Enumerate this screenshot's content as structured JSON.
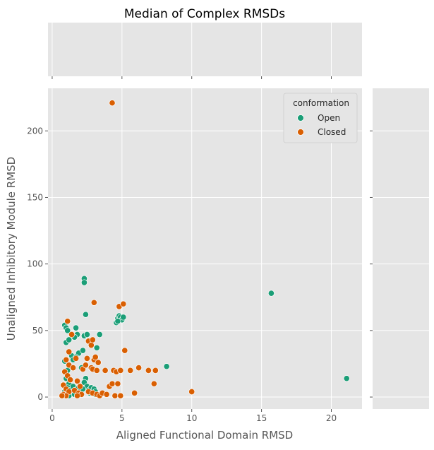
{
  "chart_data": {
    "type": "scatter",
    "title": "Median of Complex RMSDs",
    "xlabel": "Aligned Functional Domain RMSD",
    "ylabel": "Unaligned Inhibitory Module RMSD",
    "xlim": [
      -0.3,
      22.2
    ],
    "ylim": [
      -9,
      232
    ],
    "xticks": [
      0,
      5,
      10,
      15,
      20
    ],
    "yticks": [
      0,
      50,
      100,
      150,
      200
    ],
    "grid": true,
    "legend": {
      "title": "conformation",
      "position": "top-right"
    },
    "series": [
      {
        "name": "Open",
        "color": "#1b9e77",
        "points": [
          [
            0.9,
            54
          ],
          [
            1.0,
            52
          ],
          [
            1.1,
            50
          ],
          [
            1.0,
            41
          ],
          [
            1.2,
            43
          ],
          [
            0.9,
            27
          ],
          [
            1.1,
            20
          ],
          [
            1.0,
            14
          ],
          [
            1.2,
            10
          ],
          [
            1.1,
            7
          ],
          [
            1.3,
            5
          ],
          [
            0.9,
            4
          ],
          [
            1.0,
            2
          ],
          [
            1.2,
            1
          ],
          [
            1.4,
            31
          ],
          [
            1.5,
            28
          ],
          [
            1.7,
            52
          ],
          [
            1.8,
            47
          ],
          [
            1.6,
            45
          ],
          [
            1.9,
            33
          ],
          [
            1.7,
            30
          ],
          [
            1.5,
            8
          ],
          [
            1.8,
            6
          ],
          [
            2.0,
            4
          ],
          [
            1.6,
            2
          ],
          [
            2.2,
            35
          ],
          [
            2.3,
            89
          ],
          [
            2.3,
            86
          ],
          [
            2.4,
            62
          ],
          [
            2.3,
            46
          ],
          [
            2.5,
            47
          ],
          [
            2.1,
            22
          ],
          [
            2.4,
            14
          ],
          [
            2.3,
            11
          ],
          [
            2.5,
            8
          ],
          [
            2.2,
            6
          ],
          [
            2.6,
            5
          ],
          [
            2.8,
            7
          ],
          [
            3.0,
            6
          ],
          [
            2.7,
            3
          ],
          [
            3.1,
            2
          ],
          [
            3.2,
            37
          ],
          [
            3.4,
            47
          ],
          [
            3.1,
            4
          ],
          [
            3.5,
            2
          ],
          [
            4.6,
            56
          ],
          [
            4.7,
            59
          ],
          [
            4.8,
            61
          ],
          [
            4.9,
            60
          ],
          [
            5.0,
            58
          ],
          [
            5.1,
            60
          ],
          [
            4.7,
            57
          ],
          [
            8.2,
            23
          ],
          [
            15.7,
            78
          ],
          [
            21.1,
            14
          ]
        ]
      },
      {
        "name": "Closed",
        "color": "#d95f02",
        "points": [
          [
            4.3,
            221
          ],
          [
            1.1,
            57
          ],
          [
            1.4,
            47
          ],
          [
            1.2,
            34
          ],
          [
            1.0,
            28
          ],
          [
            1.2,
            24
          ],
          [
            0.9,
            19
          ],
          [
            1.1,
            16
          ],
          [
            1.3,
            13
          ],
          [
            0.8,
            9
          ],
          [
            1.0,
            6
          ],
          [
            1.2,
            4
          ],
          [
            0.8,
            2
          ],
          [
            1.0,
            1
          ],
          [
            0.7,
            1
          ],
          [
            1.5,
            22
          ],
          [
            1.7,
            29
          ],
          [
            1.8,
            12
          ],
          [
            2.0,
            8
          ],
          [
            1.6,
            5
          ],
          [
            1.9,
            3
          ],
          [
            2.1,
            2
          ],
          [
            1.8,
            1
          ],
          [
            2.2,
            21
          ],
          [
            2.4,
            24
          ],
          [
            2.5,
            29
          ],
          [
            2.6,
            42
          ],
          [
            2.8,
            39
          ],
          [
            2.9,
            43
          ],
          [
            2.8,
            22
          ],
          [
            3.0,
            71
          ],
          [
            2.9,
            21
          ],
          [
            3.0,
            28
          ],
          [
            3.1,
            30
          ],
          [
            3.3,
            26
          ],
          [
            3.2,
            20
          ],
          [
            2.6,
            4
          ],
          [
            2.9,
            3
          ],
          [
            3.2,
            2
          ],
          [
            3.4,
            1
          ],
          [
            3.6,
            3
          ],
          [
            3.8,
            20
          ],
          [
            3.9,
            2
          ],
          [
            4.1,
            8
          ],
          [
            4.3,
            10
          ],
          [
            4.4,
            20
          ],
          [
            4.6,
            19
          ],
          [
            4.7,
            10
          ],
          [
            4.8,
            68
          ],
          [
            4.9,
            20
          ],
          [
            5.1,
            70
          ],
          [
            5.2,
            35
          ],
          [
            4.5,
            1
          ],
          [
            4.9,
            1
          ],
          [
            5.6,
            20
          ],
          [
            5.9,
            3
          ],
          [
            6.2,
            22
          ],
          [
            6.9,
            20
          ],
          [
            7.3,
            10
          ],
          [
            7.4,
            20
          ],
          [
            10.0,
            4
          ]
        ]
      }
    ]
  }
}
